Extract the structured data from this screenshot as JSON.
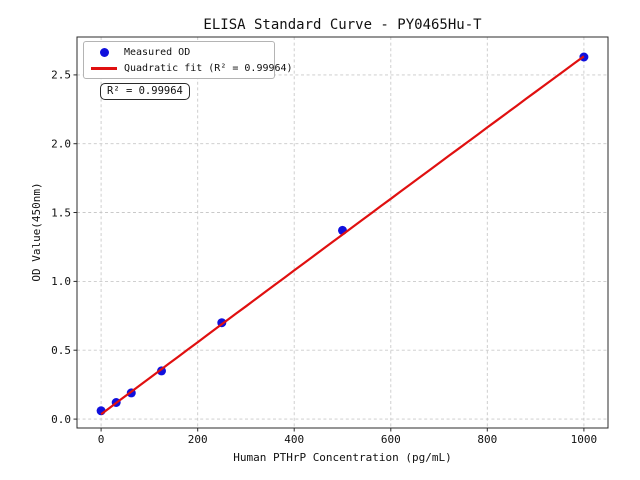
{
  "chart_data": {
    "type": "scatter",
    "title": "ELISA Standard Curve - PY0465Hu-T",
    "xlabel": "Human PTHrP Concentration (pg/mL)",
    "ylabel": "OD Value(450nm)",
    "series": [
      {
        "name": "Measured OD",
        "type": "scatter",
        "x": [
          0,
          31.25,
          62.5,
          125,
          250,
          500,
          1000
        ],
        "y": [
          0.06,
          0.12,
          0.19,
          0.35,
          0.7,
          1.37,
          2.63
        ]
      },
      {
        "name": "Quadratic fit (R² = 0.99964)",
        "type": "line",
        "fit_coeffs": {
          "a": -2e-08,
          "b": 0.00262,
          "c": 0.035
        },
        "x_range": [
          0,
          1000
        ]
      }
    ],
    "r_squared": 0.99964,
    "annotation": "R² = 0.99964",
    "legend": {
      "position": "upper left",
      "labels": [
        "Measured OD",
        "Quadratic fit (R² = 0.99964)"
      ]
    },
    "xlim": [
      -50,
      1050
    ],
    "ylim": [
      -0.065,
      2.775
    ],
    "xticks": [
      0,
      200,
      400,
      600,
      800,
      1000
    ],
    "xtick_labels": [
      "0",
      "200",
      "400",
      "600",
      "800",
      "1000"
    ],
    "yticks": [
      0,
      0.5,
      1.0,
      1.5,
      2.0,
      2.5
    ],
    "ytick_labels": [
      "0.0",
      "0.5",
      "1.0",
      "1.5",
      "2.0",
      "2.5"
    ],
    "grid": true,
    "grid_style": "dashed",
    "colors": {
      "marker": "#1010dd",
      "line": "#e01010",
      "grid": "#c9c9c9",
      "spine": "#2b2b2b",
      "text": "#111111",
      "background": "#ffffff"
    }
  }
}
